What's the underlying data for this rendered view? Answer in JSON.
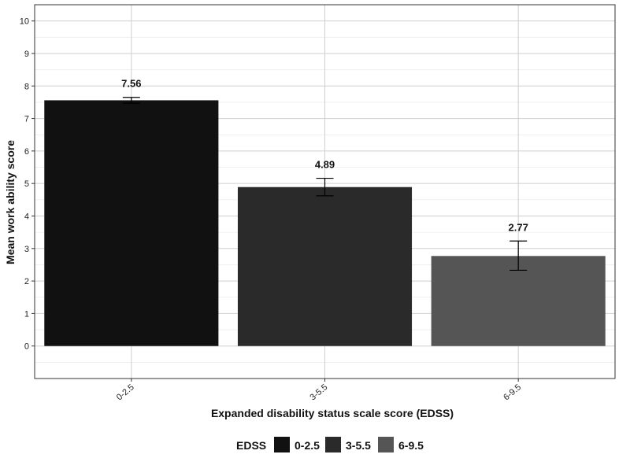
{
  "chart_data": {
    "type": "bar",
    "categories": [
      "0-2.5",
      "3-5.5",
      "6-9.5"
    ],
    "values": [
      7.56,
      4.89,
      2.77
    ],
    "errors": [
      [
        7.47,
        7.65
      ],
      [
        4.62,
        5.16
      ],
      [
        2.33,
        3.23
      ]
    ],
    "data_labels": [
      "7.56",
      "4.89",
      "2.77"
    ],
    "colors": [
      "#111111",
      "#2a2a2a",
      "#555555"
    ],
    "xlabel": "Expanded disability status scale score (EDSS)",
    "ylabel": "Mean work ability score",
    "ylim": [
      -1,
      10.5
    ],
    "yticks": [
      "0",
      "1",
      "2",
      "3",
      "4",
      "5",
      "6",
      "7",
      "8",
      "9",
      "10"
    ],
    "grid": true,
    "legend": {
      "title": "EDSS",
      "position": "bottom",
      "entries": [
        "0-2.5",
        "3-5.5",
        "6-9.5"
      ]
    }
  }
}
